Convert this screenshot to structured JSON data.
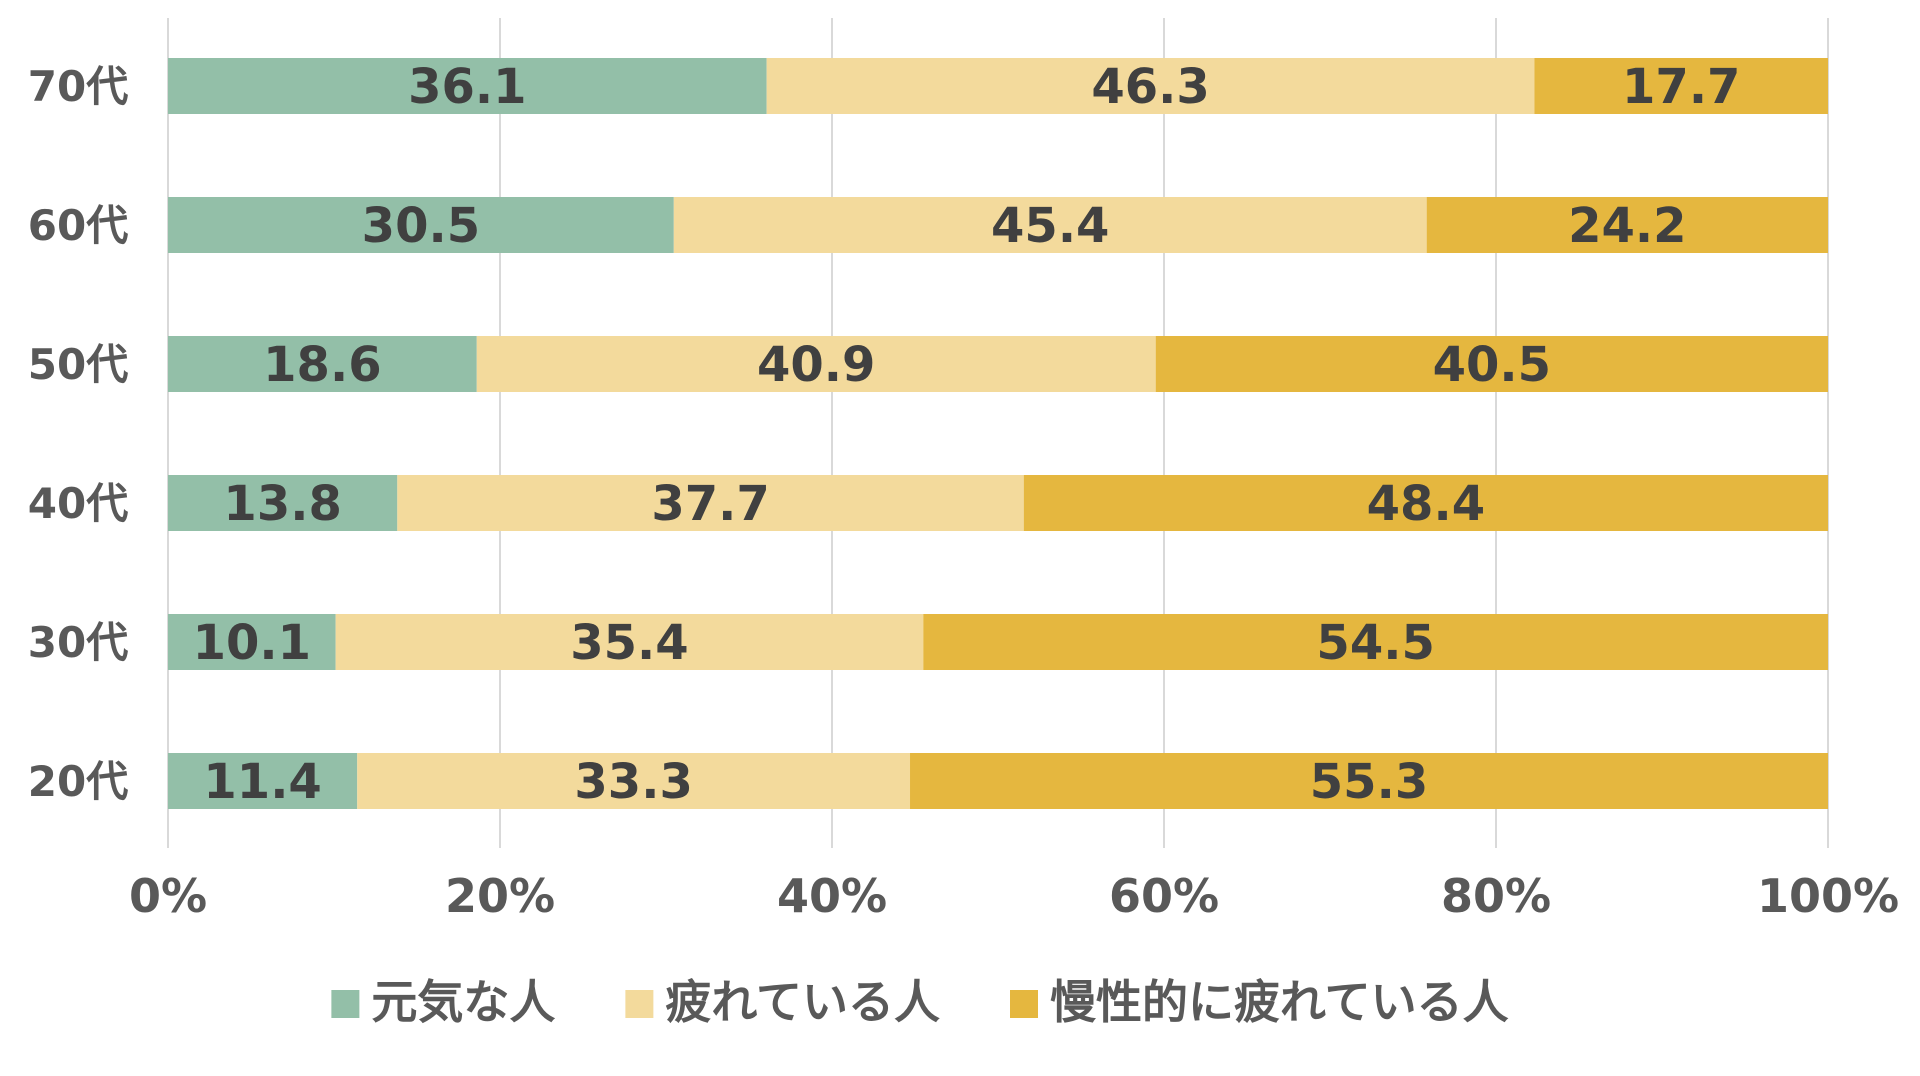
{
  "chart_data": {
    "type": "bar",
    "orientation": "horizontal",
    "stacked": "percent",
    "categories": [
      "70代",
      "60代",
      "50代",
      "40代",
      "30代",
      "20代"
    ],
    "series": [
      {
        "name": "元気な人",
        "color": "#93bfa8",
        "values": [
          36.1,
          30.5,
          18.6,
          13.8,
          10.1,
          11.4
        ]
      },
      {
        "name": "疲れている人",
        "color": "#f3da9c",
        "values": [
          46.3,
          45.4,
          40.9,
          37.7,
          35.4,
          33.3
        ]
      },
      {
        "name": "慢性的に疲れている人",
        "color": "#e5b73f",
        "values": [
          17.7,
          24.2,
          40.5,
          48.4,
          54.5,
          55.3
        ]
      }
    ],
    "x_ticks": [
      "0%",
      "20%",
      "40%",
      "60%",
      "80%",
      "100%"
    ],
    "xlim": [
      0,
      100
    ],
    "title": "",
    "xlabel": "",
    "ylabel": "",
    "grid": "vertical",
    "legend_position": "bottom"
  }
}
